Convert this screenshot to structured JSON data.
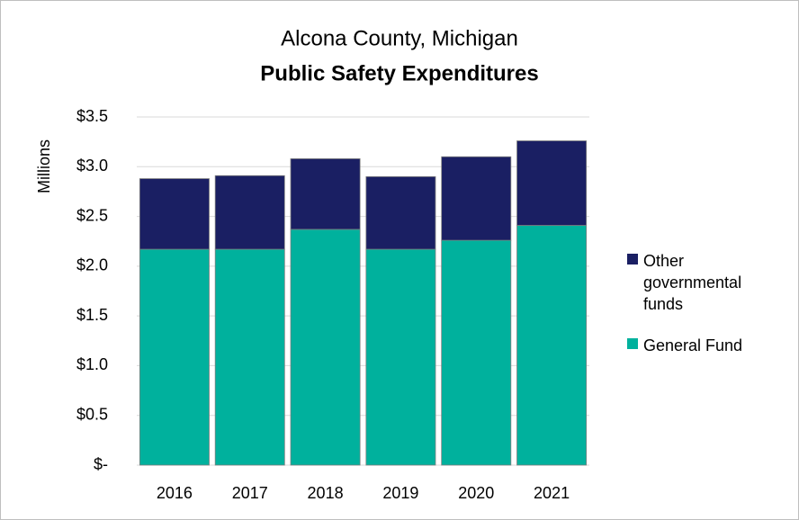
{
  "chart_data": {
    "type": "stacked_bar",
    "title": "Alcona County, Michigan",
    "subtitle": "Public Safety Expenditures",
    "y_label": "Millions",
    "categories": [
      "2016",
      "2017",
      "2018",
      "2019",
      "2020",
      "2021"
    ],
    "series": [
      {
        "name": "General Fund",
        "color": "#00b19d",
        "values": [
          2.17,
          2.17,
          2.37,
          2.17,
          2.26,
          2.41
        ]
      },
      {
        "name": "Other governmental funds",
        "color": "#1a1f63",
        "values": [
          0.71,
          0.74,
          0.71,
          0.73,
          0.84,
          0.85
        ]
      }
    ],
    "ylim": [
      0,
      3.5
    ],
    "yticks": [
      {
        "value": 0,
        "label": "$-"
      },
      {
        "value": 0.5,
        "label": "$0.5"
      },
      {
        "value": 1,
        "label": "$1.0"
      },
      {
        "value": 1.5,
        "label": "$1.5"
      },
      {
        "value": 2,
        "label": "$2.0"
      },
      {
        "value": 2.5,
        "label": "$2.5"
      },
      {
        "value": 3,
        "label": "$3.0"
      },
      {
        "value": 3.5,
        "label": "$3.5"
      }
    ],
    "grid": true,
    "legend": "right"
  }
}
